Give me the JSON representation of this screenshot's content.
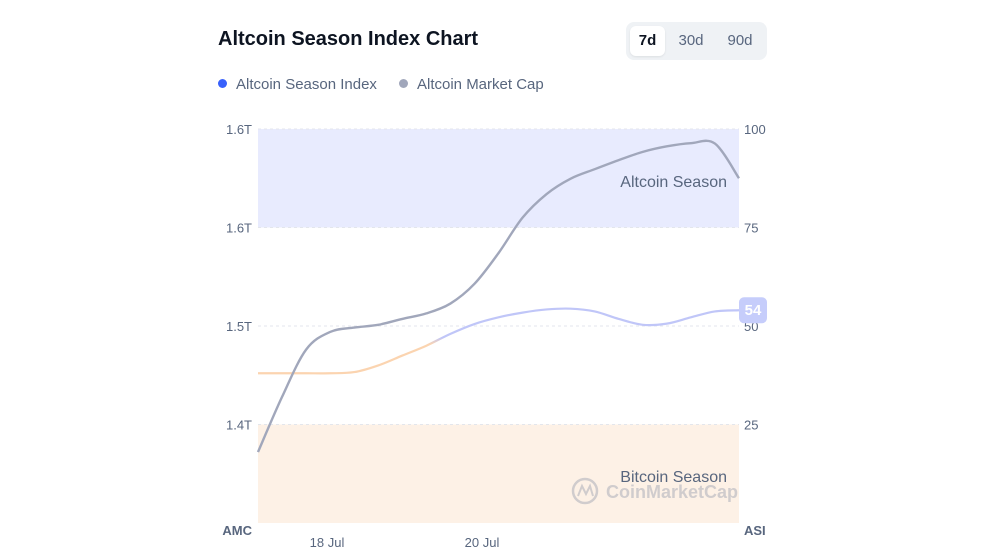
{
  "header": {
    "title": "Altcoin Season Index Chart"
  },
  "range": {
    "options": [
      "7d",
      "30d",
      "90d"
    ],
    "active": "7d"
  },
  "legend": [
    {
      "label": "Altcoin Season Index",
      "color": "#3861fb"
    },
    {
      "label": "Altcoin Market Cap",
      "color": "#a1a7bb"
    }
  ],
  "colors": {
    "altcoin_zone": "#e8ebfe",
    "bitcoin_zone": "#fdf1e6",
    "index_line_upper": "#c0c6f8",
    "index_line_lower": "#fbd4b0",
    "marketcap_line": "#a1a7bb",
    "badge": "#c6cdfb"
  },
  "watermark": "CoinMarketCap",
  "chart_data": {
    "type": "line",
    "x_ticks": [
      "18 Jul",
      "20 Jul"
    ],
    "left_axis": {
      "label": "AMC",
      "ticks": [
        "1.4T",
        "1.5T",
        "1.6T",
        "1.6T"
      ]
    },
    "right_axis": {
      "label": "ASI",
      "ticks": [
        "25",
        "50",
        "75",
        "100"
      ],
      "ylim": [
        0,
        100
      ]
    },
    "zones": [
      {
        "label": "Altcoin Season",
        "range": [
          75,
          100
        ]
      },
      {
        "label": "Bitcoin Season",
        "range": [
          0,
          25
        ]
      }
    ],
    "current_value_badge": "54",
    "series": [
      {
        "name": "Altcoin Season Index",
        "axis": "right",
        "values": [
          38,
          38,
          38,
          38,
          38.3,
          40,
          42.5,
          45,
          48,
          50.5,
          52.2,
          53.4,
          54.2,
          54.4,
          53.7,
          51.8,
          50.3,
          50.6,
          52.2,
          53.7,
          54
        ]
      },
      {
        "name": "Altcoin Market Cap",
        "axis": "right",
        "values": [
          18,
          32,
          44,
          48.5,
          49.6,
          50.3,
          51.8,
          53.2,
          55.7,
          60.7,
          68.5,
          77.5,
          83.5,
          87.4,
          89.8,
          92.1,
          94.2,
          95.6,
          96.4,
          96.3,
          87.5
        ]
      }
    ]
  }
}
